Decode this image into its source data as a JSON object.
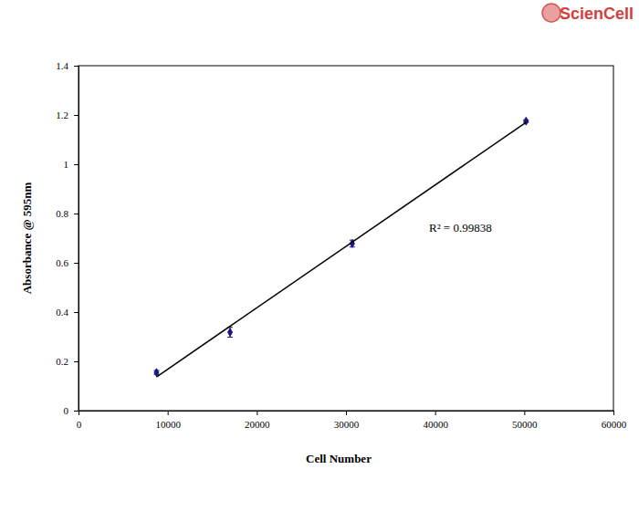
{
  "chart_data": {
    "type": "scatter",
    "watermark": "ScienCell",
    "x_label": "Cell Number",
    "y_label": "Absorbance @ 595nm",
    "annotations": [
      "R² = 0.99838"
    ],
    "xlim": [
      0,
      60000
    ],
    "xticks": [
      0,
      10000,
      20000,
      30000,
      40000,
      50000,
      60000
    ],
    "ylim": [
      0,
      1.4
    ],
    "yticks": [
      0,
      0.2,
      0.4,
      0.6,
      0.8,
      1,
      1.2,
      1.4
    ],
    "series": [
      {
        "type": "scatter",
        "marker": "diamond",
        "color": "#1a1a80",
        "x": [
          8750,
          17000,
          30700,
          50200
        ],
        "values": [
          0.155,
          0.318,
          0.678,
          1.175
        ],
        "errors": [
          0.008,
          0.02,
          0.014,
          0.005
        ]
      },
      {
        "type": "line",
        "line_style": "solid",
        "color": "#000000",
        "x": [
          8750,
          50200
        ],
        "values": [
          0.137,
          1.17
        ]
      }
    ]
  }
}
